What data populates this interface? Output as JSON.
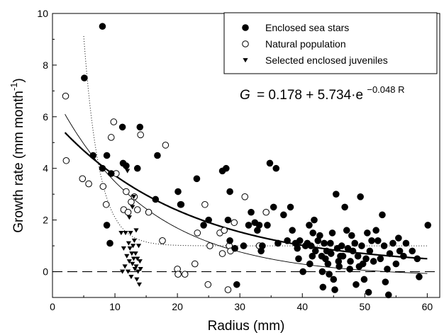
{
  "chart_data": {
    "type": "scatter",
    "title": "",
    "xlabel": "Radius (mm)",
    "ylabel_main": "Growth rate (mm month",
    "ylabel_sup": "-1",
    "ylabel_close": ")",
    "xlim": [
      0,
      62
    ],
    "ylim": [
      -1,
      10
    ],
    "x_ticks": [
      0,
      10,
      20,
      30,
      40,
      50,
      60
    ],
    "y_ticks": [
      0,
      2,
      4,
      6,
      8,
      10
    ],
    "legend_position": "top-right",
    "equation": {
      "lhs": "G",
      "rhs": "= 0.178 + 5.734·e",
      "exponent": "−0.048 R"
    },
    "series": [
      {
        "name": "Enclosed sea stars",
        "marker": "filled-circle",
        "points": [
          [
            8,
            9.5
          ],
          [
            5.1,
            7.5
          ],
          [
            6.5,
            4.5
          ],
          [
            8,
            4
          ],
          [
            8.7,
            4.5
          ],
          [
            9.4,
            3.8
          ],
          [
            8.7,
            1.8
          ],
          [
            9.2,
            1.1
          ],
          [
            11.2,
            5.6
          ],
          [
            11.3,
            4.2
          ],
          [
            11.8,
            4.1
          ],
          [
            13.6,
            4.0
          ],
          [
            14,
            5.6
          ],
          [
            16.8,
            4.5
          ],
          [
            16.5,
            2.8
          ],
          [
            20.1,
            3.1
          ],
          [
            20.5,
            2.6
          ],
          [
            23.1,
            3.6
          ],
          [
            24.2,
            1.8
          ],
          [
            25,
            2.0
          ],
          [
            27.2,
            3.9
          ],
          [
            27.8,
            4.0
          ],
          [
            28.4,
            3.1
          ],
          [
            28.1,
            2.0
          ],
          [
            28.4,
            1.2
          ],
          [
            29.2,
            0.9
          ],
          [
            29.5,
            -0.5
          ],
          [
            30.6,
            1.0
          ],
          [
            31.4,
            1.8
          ],
          [
            31.8,
            2.3
          ],
          [
            32.4,
            1.9
          ],
          [
            32.8,
            1.6
          ],
          [
            33.1,
            1.8
          ],
          [
            33.4,
            0.8
          ],
          [
            33.6,
            1.0
          ],
          [
            34.4,
            1.8
          ],
          [
            34.8,
            4.2
          ],
          [
            35.4,
            2.5
          ],
          [
            35.8,
            4.0
          ],
          [
            36.1,
            1.1
          ],
          [
            37.0,
            2.2
          ],
          [
            37.6,
            1.2
          ],
          [
            38.1,
            2.5
          ],
          [
            38.4,
            1.6
          ],
          [
            38.9,
            1.1
          ],
          [
            39.2,
            0.9
          ],
          [
            39.4,
            0.5
          ],
          [
            39.6,
            1.2
          ],
          [
            40.1,
            0.0
          ],
          [
            40.5,
            1.0
          ],
          [
            40.8,
            1.1
          ],
          [
            41.1,
            1.8
          ],
          [
            41.2,
            0.3
          ],
          [
            41.4,
            1.0
          ],
          [
            41.7,
            1.5
          ],
          [
            41.9,
            2.0
          ],
          [
            42.1,
            0.8
          ],
          [
            42.5,
            1.2
          ],
          [
            42.8,
            1.4
          ],
          [
            43.1,
            0.6
          ],
          [
            43.2,
            0.0
          ],
          [
            43.3,
            -0.6
          ],
          [
            43.5,
            1.1
          ],
          [
            43.7,
            0.5
          ],
          [
            43.9,
            0.8
          ],
          [
            44.1,
            0.3
          ],
          [
            44.3,
            -0.1
          ],
          [
            44.5,
            1.1
          ],
          [
            44.6,
            0.7
          ],
          [
            44.8,
            1.5
          ],
          [
            45.0,
            -0.3
          ],
          [
            45.2,
            -0.7
          ],
          [
            45.4,
            3.0
          ],
          [
            45.6,
            0.9
          ],
          [
            45.8,
            0.4
          ],
          [
            46.1,
            0.6
          ],
          [
            46.3,
            1.0
          ],
          [
            46.5,
            0.6
          ],
          [
            46.8,
            2.5
          ],
          [
            47.1,
            1.6
          ],
          [
            47.3,
            0.9
          ],
          [
            47.6,
            0.1
          ],
          [
            47.9,
            1.4
          ],
          [
            48.1,
            0.8
          ],
          [
            48.4,
            1.1
          ],
          [
            48.6,
            -0.5
          ],
          [
            48.9,
            0.6
          ],
          [
            49.1,
            0.2
          ],
          [
            49.3,
            2.9
          ],
          [
            49.5,
            1.0
          ],
          [
            49.7,
            0.3
          ],
          [
            49.9,
            -0.3
          ],
          [
            50.2,
            0.5
          ],
          [
            50.4,
            1.5
          ],
          [
            50.6,
            -0.8
          ],
          [
            50.8,
            0.8
          ],
          [
            51.1,
            1.2
          ],
          [
            51.4,
            0.4
          ],
          [
            51.8,
            1.6
          ],
          [
            52.1,
            1.2
          ],
          [
            52.5,
            0.5
          ],
          [
            52.8,
            2.2
          ],
          [
            53.1,
            1.0
          ],
          [
            53.3,
            -0.4
          ],
          [
            53.6,
            0.1
          ],
          [
            53.8,
            -0.9
          ],
          [
            54.0,
            0.7
          ],
          [
            54.5,
            1.1
          ],
          [
            55.0,
            0.3
          ],
          [
            55.4,
            1.3
          ],
          [
            56.2,
            0.6
          ],
          [
            56.6,
            1.1
          ],
          [
            57.6,
            0.8
          ],
          [
            58.4,
            0.5
          ],
          [
            58.7,
            -0.2
          ],
          [
            60.1,
            1.8
          ],
          [
            55.6,
            0.8
          ],
          [
            45.9,
            0.2
          ],
          [
            41.6,
            0.6
          ],
          [
            47.7,
            0.4
          ]
        ]
      },
      {
        "name": "Natural population",
        "marker": "open-circle",
        "points": [
          [
            2.1,
            6.8
          ],
          [
            2.2,
            4.3
          ],
          [
            4.8,
            3.6
          ],
          [
            5.8,
            3.4
          ],
          [
            8.1,
            3.3
          ],
          [
            8.6,
            2.6
          ],
          [
            9.4,
            5.2
          ],
          [
            9.8,
            5.8
          ],
          [
            10.2,
            3.8
          ],
          [
            11.4,
            2.4
          ],
          [
            11.8,
            3.1
          ],
          [
            12.1,
            2.3
          ],
          [
            12.6,
            2.7
          ],
          [
            13.1,
            2.9
          ],
          [
            13.6,
            2.4
          ],
          [
            14.1,
            5.3
          ],
          [
            15.4,
            2.3
          ],
          [
            17.6,
            1.2
          ],
          [
            18.1,
            4.9
          ],
          [
            20.0,
            0.1
          ],
          [
            20.1,
            -0.1
          ],
          [
            20.6,
            2.6
          ],
          [
            21.2,
            -0.1
          ],
          [
            22.8,
            0.3
          ],
          [
            23.2,
            1.5
          ],
          [
            24.4,
            2.6
          ],
          [
            24.9,
            -0.5
          ],
          [
            25.2,
            1.0
          ],
          [
            26.8,
            1.5
          ],
          [
            27.2,
            0.7
          ],
          [
            27.5,
            1.6
          ],
          [
            28.1,
            -0.7
          ],
          [
            28.3,
            1.0
          ],
          [
            29.1,
            1.9
          ],
          [
            30.8,
            2.9
          ],
          [
            33.1,
            1.0
          ],
          [
            34.2,
            2.3
          ],
          [
            28.5,
            0.8
          ]
        ]
      },
      {
        "name": "Selected enclosed juveniles",
        "marker": "filled-triangle-down",
        "points": [
          [
            11.0,
            1.5
          ],
          [
            11.2,
            0.0
          ],
          [
            11.4,
            0.9
          ],
          [
            11.6,
            0.2
          ],
          [
            11.7,
            1.5
          ],
          [
            11.9,
            0.6
          ],
          [
            12.0,
            3.9
          ],
          [
            12.1,
            0.0
          ],
          [
            12.2,
            1.1
          ],
          [
            12.3,
            0.4
          ],
          [
            12.4,
            0.9
          ],
          [
            12.5,
            1.5
          ],
          [
            12.6,
            -0.2
          ],
          [
            12.7,
            0.7
          ],
          [
            12.8,
            0.3
          ],
          [
            12.9,
            1.0
          ],
          [
            13.0,
            0.5
          ],
          [
            13.1,
            1.2
          ],
          [
            13.2,
            0.1
          ],
          [
            13.3,
            0.7
          ],
          [
            13.4,
            0.2
          ],
          [
            13.5,
            -0.3
          ],
          [
            13.6,
            0.5
          ],
          [
            13.7,
            0.0
          ],
          [
            13.8,
            1.0
          ],
          [
            13.9,
            -0.5
          ],
          [
            14.0,
            0.4
          ],
          [
            14.1,
            0.1
          ],
          [
            12.3,
            2.1
          ],
          [
            13.4,
            1.6
          ],
          [
            12.8,
            2.5
          ],
          [
            13.0,
            2.9
          ]
        ]
      }
    ],
    "curves": [
      {
        "style": "thick-solid",
        "a": 0.178,
        "b": 5.734,
        "k": 0.048,
        "x_range": [
          2,
          60
        ]
      },
      {
        "style": "thin-solid",
        "a": -0.2,
        "b": 7.2,
        "k": 0.067,
        "x_range": [
          2,
          60
        ]
      },
      {
        "style": "dotted",
        "a": 1.0,
        "b": 60.0,
        "k": 0.4,
        "x_range": [
          5,
          60
        ]
      }
    ],
    "reference_line": {
      "y": 0,
      "style": "dashed"
    }
  }
}
